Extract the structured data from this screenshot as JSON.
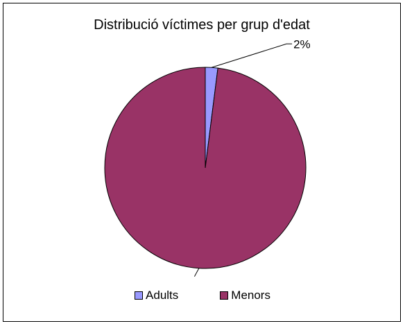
{
  "chart_data": {
    "type": "pie",
    "title": "Distribució víctimes per grup d'edat",
    "categories": [
      "Adults",
      "Menors"
    ],
    "values": [
      2,
      98
    ],
    "data_labels": [
      "2%",
      ""
    ],
    "colors": [
      "#9999FF",
      "#993366"
    ],
    "legend_position": "bottom"
  }
}
